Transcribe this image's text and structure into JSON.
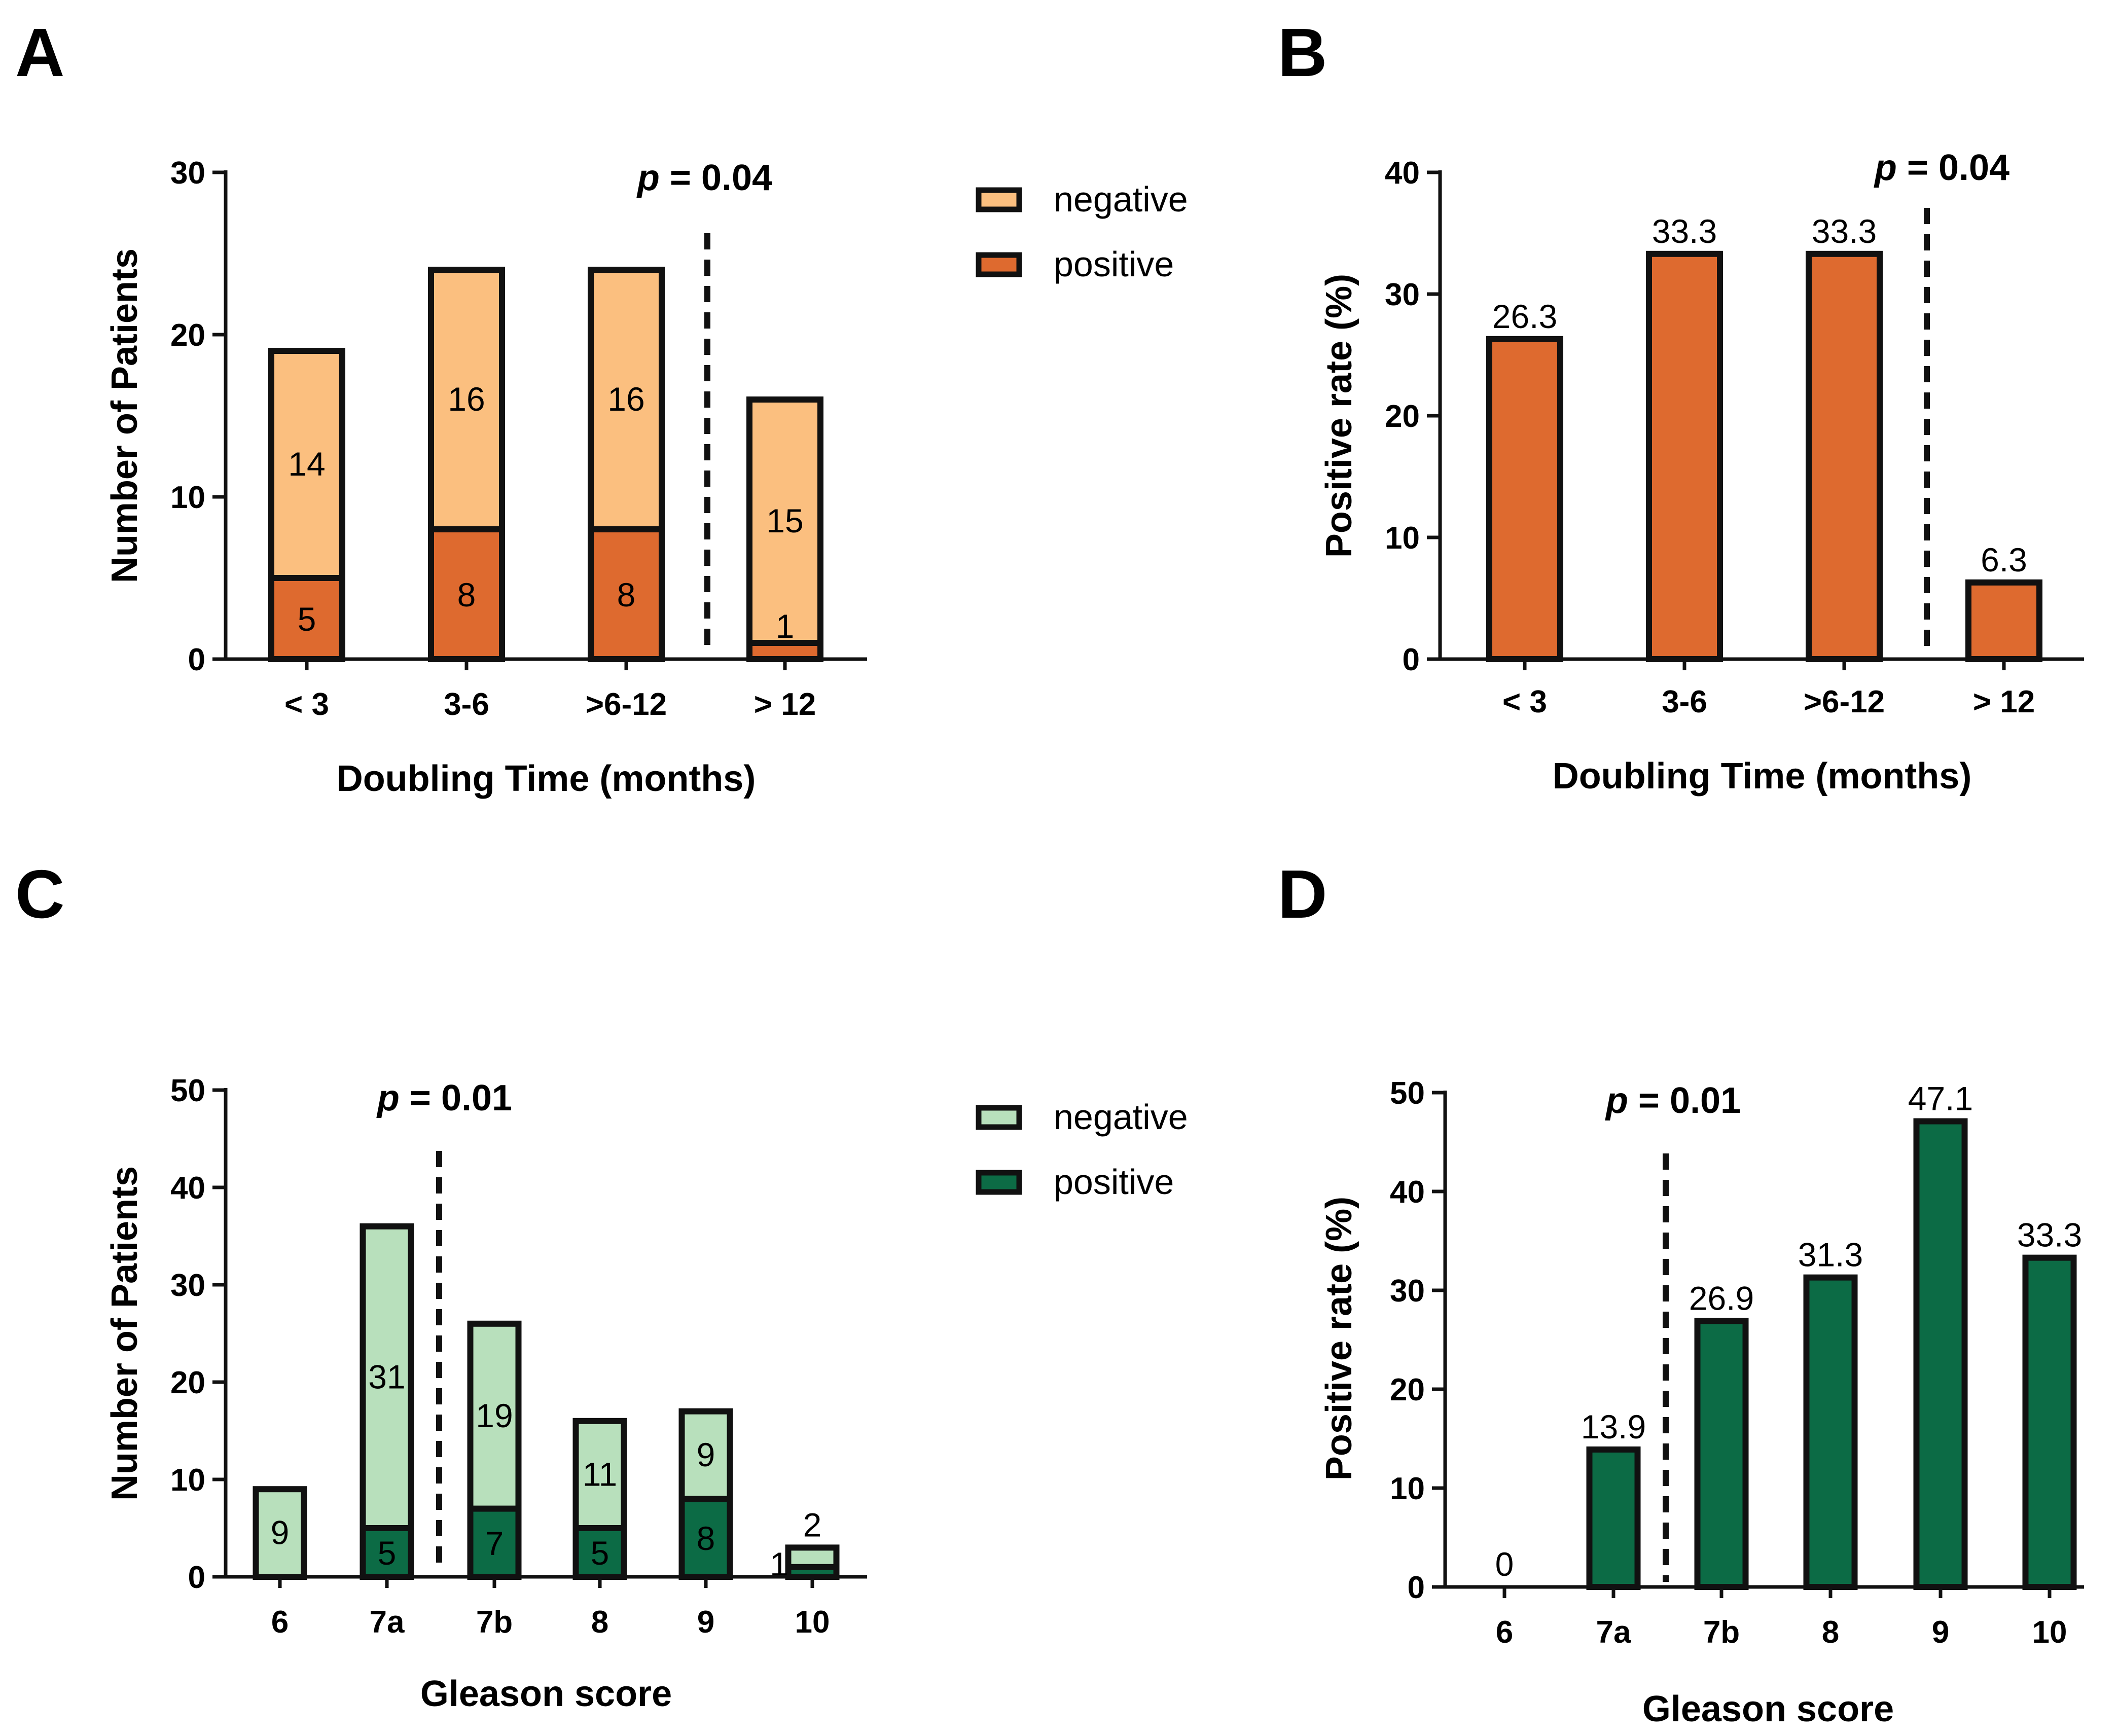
{
  "colors": {
    "orange_negative": "#FBBF7F",
    "orange_positive": "#DE6A2F",
    "green_negative": "#B8E0BC",
    "green_positive": "#0C6B45",
    "outline": "#111111"
  },
  "chart_data": [
    {
      "panel": "A",
      "type": "bar",
      "stacked": true,
      "title": "",
      "xlabel": "Doubling Time (months)",
      "ylabel": "Number of Patients",
      "ylim": [
        0,
        30
      ],
      "yticks": [
        0,
        10,
        20,
        30
      ],
      "categories": [
        "< 3",
        "3-6",
        ">6-12",
        "> 12"
      ],
      "series": [
        {
          "name": "positive",
          "values": [
            5,
            8,
            8,
            1
          ]
        },
        {
          "name": "negative",
          "values": [
            14,
            16,
            16,
            15
          ]
        }
      ],
      "annotation": {
        "p_label": "p",
        "p_value": "= 0.04",
        "divider_after_category": 2
      },
      "legend": {
        "placement": "right",
        "entries": [
          "negative",
          "positive"
        ]
      }
    },
    {
      "panel": "B",
      "type": "bar",
      "title": "",
      "xlabel": "Doubling Time (months)",
      "ylabel": "Positive rate (%)",
      "ylim": [
        0,
        40
      ],
      "yticks": [
        0,
        10,
        20,
        30,
        40
      ],
      "categories": [
        "< 3",
        "3-6",
        ">6-12",
        "> 12"
      ],
      "values": [
        26.3,
        33.3,
        33.3,
        6.3
      ],
      "data_labels": [
        "26.3",
        "33.3",
        "33.3",
        "6.3"
      ],
      "annotation": {
        "p_label": "p",
        "p_value": "= 0.04",
        "divider_after_category": 2
      }
    },
    {
      "panel": "C",
      "type": "bar",
      "stacked": true,
      "title": "",
      "xlabel": "Gleason score",
      "ylabel": "Number of Patients",
      "ylim": [
        0,
        50
      ],
      "yticks": [
        0,
        10,
        20,
        30,
        40,
        50
      ],
      "categories": [
        "6",
        "7a",
        "7b",
        "8",
        "9",
        "10"
      ],
      "series": [
        {
          "name": "positive",
          "values": [
            0,
            5,
            7,
            5,
            8,
            1
          ]
        },
        {
          "name": "negative",
          "values": [
            9,
            31,
            19,
            11,
            9,
            2
          ]
        }
      ],
      "annotation": {
        "p_label": "p",
        "p_value": "= 0.01",
        "divider_after_category": 1
      },
      "legend": {
        "placement": "right",
        "entries": [
          "negative",
          "positive"
        ]
      }
    },
    {
      "panel": "D",
      "type": "bar",
      "title": "",
      "xlabel": "Gleason score",
      "ylabel": "Positive rate (%)",
      "ylim": [
        0,
        50
      ],
      "yticks": [
        0,
        10,
        20,
        30,
        40,
        50
      ],
      "categories": [
        "6",
        "7a",
        "7b",
        "8",
        "9",
        "10"
      ],
      "values": [
        0,
        13.9,
        26.9,
        31.3,
        47.1,
        33.3
      ],
      "data_labels": [
        "0",
        "13.9",
        "26.9",
        "31.3",
        "47.1",
        "33.3"
      ],
      "annotation": {
        "p_label": "p",
        "p_value": "= 0.01",
        "divider_after_category": 1
      }
    }
  ]
}
